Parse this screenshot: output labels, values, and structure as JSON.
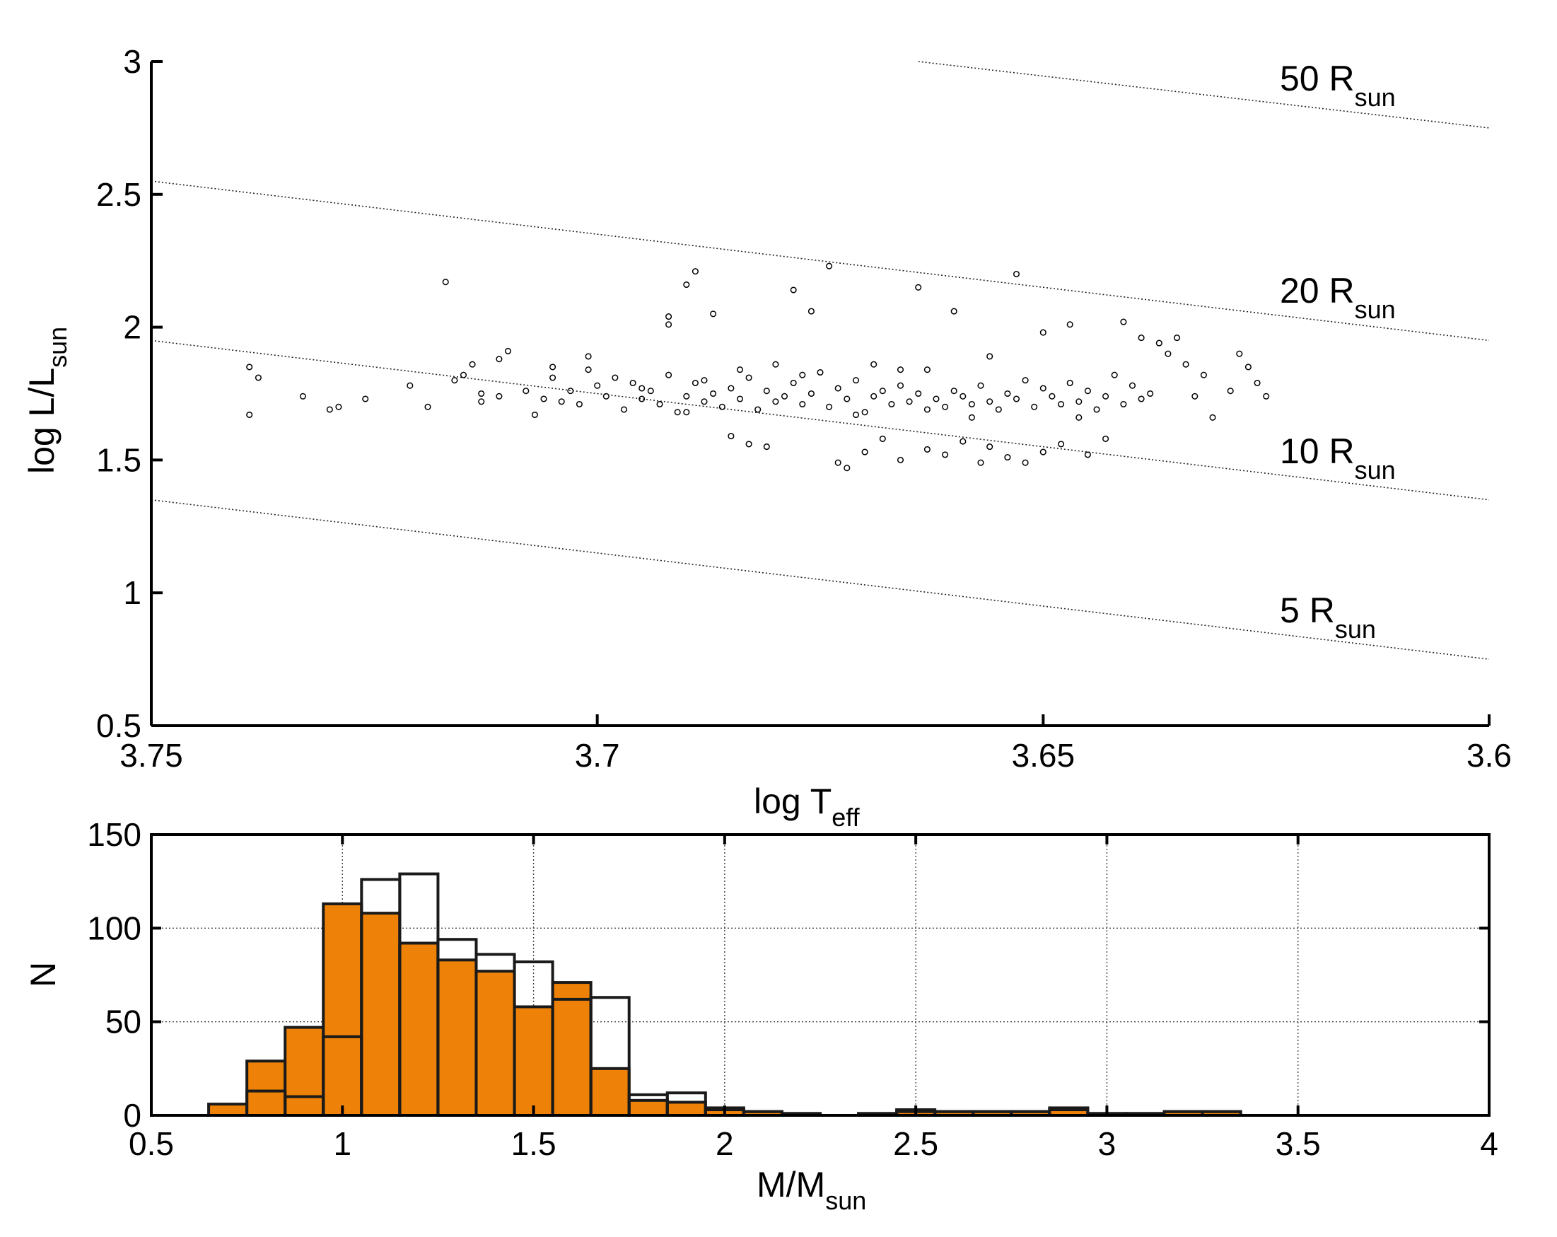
{
  "chart_data": [
    {
      "type": "scatter",
      "xlabel": "log T",
      "xlabel_sub": "eff",
      "ylabel": "log L/L",
      "ylabel_sub": "sun",
      "xlim": [
        3.75,
        3.6
      ],
      "x_reversed": true,
      "ylim": [
        0.5,
        3
      ],
      "xticks": [
        3.75,
        3.7,
        3.65,
        3.6
      ],
      "xtick_labels": [
        "3.75",
        "3.7",
        "3.65",
        "3.6"
      ],
      "yticks": [
        0.5,
        1,
        1.5,
        2,
        2.5,
        3
      ],
      "ytick_labels": [
        "0.5",
        "1",
        "1.5",
        "2",
        "2.5",
        "3"
      ],
      "grid": false,
      "radius_lines": [
        {
          "label_main": "5 R",
          "label_sub": "sun",
          "x": [
            3.75,
            3.6
          ],
          "y": [
            1.35,
            0.75
          ]
        },
        {
          "label_main": "10 R",
          "label_sub": "sun",
          "x": [
            3.75,
            3.6
          ],
          "y": [
            1.95,
            1.35
          ]
        },
        {
          "label_main": "20 R",
          "label_sub": "sun",
          "x": [
            3.75,
            3.6
          ],
          "y": [
            2.55,
            1.95
          ]
        },
        {
          "label_main": "50 R",
          "label_sub": "sun",
          "x": [
            3.664,
            3.6
          ],
          "y": [
            3.0,
            2.75
          ]
        }
      ],
      "points": [
        [
          3.739,
          1.85
        ],
        [
          3.739,
          1.67
        ],
        [
          3.738,
          1.81
        ],
        [
          3.733,
          1.74
        ],
        [
          3.73,
          1.69
        ],
        [
          3.721,
          1.78
        ],
        [
          3.717,
          2.17
        ],
        [
          3.716,
          1.8
        ],
        [
          3.715,
          1.82
        ],
        [
          3.714,
          1.86
        ],
        [
          3.713,
          1.75
        ],
        [
          3.713,
          1.72
        ],
        [
          3.711,
          1.88
        ],
        [
          3.71,
          1.91
        ],
        [
          3.708,
          1.76
        ],
        [
          3.707,
          1.67
        ],
        [
          3.706,
          1.73
        ],
        [
          3.705,
          1.85
        ],
        [
          3.704,
          1.72
        ],
        [
          3.703,
          1.76
        ],
        [
          3.702,
          1.71
        ],
        [
          3.701,
          1.84
        ],
        [
          3.7,
          1.78
        ],
        [
          3.699,
          1.74
        ],
        [
          3.698,
          1.81
        ],
        [
          3.697,
          1.69
        ],
        [
          3.696,
          1.79
        ],
        [
          3.695,
          1.73
        ],
        [
          3.694,
          1.76
        ],
        [
          3.693,
          1.71
        ],
        [
          3.692,
          1.82
        ],
        [
          3.691,
          1.68
        ],
        [
          3.69,
          1.74
        ],
        [
          3.689,
          1.79
        ],
        [
          3.688,
          1.72
        ],
        [
          3.687,
          1.75
        ],
        [
          3.686,
          1.7
        ],
        [
          3.685,
          1.77
        ],
        [
          3.684,
          1.73
        ],
        [
          3.683,
          1.81
        ],
        [
          3.682,
          1.69
        ],
        [
          3.681,
          1.76
        ],
        [
          3.68,
          1.72
        ],
        [
          3.679,
          1.74
        ],
        [
          3.678,
          1.79
        ],
        [
          3.677,
          1.71
        ],
        [
          3.676,
          1.75
        ],
        [
          3.675,
          1.83
        ],
        [
          3.674,
          1.7
        ],
        [
          3.673,
          1.77
        ],
        [
          3.672,
          1.73
        ],
        [
          3.671,
          1.8
        ],
        [
          3.67,
          1.68
        ],
        [
          3.669,
          1.74
        ],
        [
          3.668,
          1.76
        ],
        [
          3.667,
          1.71
        ],
        [
          3.666,
          1.78
        ],
        [
          3.665,
          1.72
        ],
        [
          3.664,
          1.75
        ],
        [
          3.663,
          1.69
        ],
        [
          3.662,
          1.73
        ],
        [
          3.661,
          1.7
        ],
        [
          3.66,
          1.76
        ],
        [
          3.659,
          1.74
        ],
        [
          3.658,
          1.71
        ],
        [
          3.657,
          1.78
        ],
        [
          3.656,
          1.72
        ],
        [
          3.655,
          1.69
        ],
        [
          3.654,
          1.75
        ],
        [
          3.653,
          1.73
        ],
        [
          3.652,
          1.8
        ],
        [
          3.651,
          1.7
        ],
        [
          3.65,
          1.77
        ],
        [
          3.649,
          1.74
        ],
        [
          3.648,
          1.71
        ],
        [
          3.647,
          1.79
        ],
        [
          3.646,
          1.72
        ],
        [
          3.645,
          1.76
        ],
        [
          3.644,
          1.69
        ],
        [
          3.643,
          1.74
        ],
        [
          3.642,
          1.82
        ],
        [
          3.641,
          1.71
        ],
        [
          3.64,
          1.78
        ],
        [
          3.639,
          1.73
        ],
        [
          3.638,
          1.75
        ],
        [
          3.692,
          2.04
        ],
        [
          3.692,
          2.01
        ],
        [
          3.69,
          2.16
        ],
        [
          3.689,
          2.21
        ],
        [
          3.687,
          2.05
        ],
        [
          3.685,
          1.59
        ],
        [
          3.683,
          1.56
        ],
        [
          3.681,
          1.55
        ],
        [
          3.678,
          2.14
        ],
        [
          3.676,
          2.06
        ],
        [
          3.674,
          2.23
        ],
        [
          3.673,
          1.49
        ],
        [
          3.672,
          1.47
        ],
        [
          3.67,
          1.53
        ],
        [
          3.668,
          1.58
        ],
        [
          3.666,
          1.5
        ],
        [
          3.664,
          2.15
        ],
        [
          3.663,
          1.54
        ],
        [
          3.661,
          1.52
        ],
        [
          3.66,
          2.06
        ],
        [
          3.659,
          1.57
        ],
        [
          3.657,
          1.49
        ],
        [
          3.656,
          1.55
        ],
        [
          3.654,
          1.51
        ],
        [
          3.653,
          2.2
        ],
        [
          3.652,
          1.49
        ],
        [
          3.65,
          1.53
        ],
        [
          3.648,
          1.56
        ],
        [
          3.647,
          2.01
        ],
        [
          3.645,
          1.52
        ],
        [
          3.643,
          1.58
        ],
        [
          3.641,
          2.02
        ],
        [
          3.639,
          1.96
        ],
        [
          3.637,
          1.94
        ],
        [
          3.636,
          1.9
        ],
        [
          3.635,
          1.96
        ],
        [
          3.634,
          1.86
        ],
        [
          3.633,
          1.74
        ],
        [
          3.632,
          1.82
        ],
        [
          3.631,
          1.66
        ],
        [
          3.629,
          1.76
        ],
        [
          3.628,
          1.9
        ],
        [
          3.627,
          1.85
        ],
        [
          3.626,
          1.79
        ],
        [
          3.625,
          1.74
        ],
        [
          3.65,
          1.98
        ],
        [
          3.656,
          1.89
        ],
        [
          3.663,
          1.84
        ],
        [
          3.669,
          1.86
        ],
        [
          3.677,
          1.82
        ],
        [
          3.684,
          1.84
        ],
        [
          3.688,
          1.8
        ],
        [
          3.695,
          1.77
        ],
        [
          3.701,
          1.89
        ],
        [
          3.705,
          1.81
        ],
        [
          3.711,
          1.74
        ],
        [
          3.719,
          1.7
        ],
        [
          3.726,
          1.73
        ],
        [
          3.729,
          1.7
        ],
        [
          3.69,
          1.68
        ],
        [
          3.68,
          1.86
        ],
        [
          3.671,
          1.67
        ],
        [
          3.666,
          1.84
        ],
        [
          3.658,
          1.66
        ],
        [
          3.646,
          1.66
        ]
      ]
    },
    {
      "type": "histogram",
      "xlabel": "M/M",
      "xlabel_sub": "sun",
      "ylabel": "N",
      "xlim": [
        0.5,
        4
      ],
      "ylim": [
        0,
        150
      ],
      "xticks": [
        0.5,
        1,
        1.5,
        2,
        2.5,
        3,
        3.5,
        4
      ],
      "xtick_labels": [
        "0.5",
        "1",
        "1.5",
        "2",
        "2.5",
        "3",
        "3.5",
        "4"
      ],
      "yticks": [
        0,
        50,
        100,
        150
      ],
      "ytick_labels": [
        "0",
        "50",
        "100",
        "150"
      ],
      "grid": true,
      "bin_edges": [
        0.65,
        0.75,
        0.85,
        0.95,
        1.05,
        1.15,
        1.25,
        1.35,
        1.45,
        1.55,
        1.65,
        1.75,
        1.85,
        1.95,
        2.05,
        2.15,
        2.25,
        2.35,
        2.45,
        2.55,
        2.65,
        2.75,
        2.85,
        2.95,
        3.05,
        3.15,
        3.25,
        3.35
      ],
      "series": [
        {
          "fill": "#ee8208",
          "values": [
            6,
            29,
            47,
            113,
            108,
            92,
            83,
            77,
            58,
            71,
            25,
            8,
            7,
            3,
            2,
            1,
            0,
            1,
            3,
            2,
            2,
            2,
            4,
            1,
            1,
            2,
            2
          ]
        },
        {
          "fill": "none",
          "values": [
            0,
            13,
            10,
            42,
            126,
            129,
            94,
            86,
            82,
            62,
            63,
            11,
            12,
            4,
            2,
            1,
            0,
            1,
            2,
            2,
            2,
            2,
            3,
            1,
            1,
            2,
            2
          ]
        }
      ]
    }
  ]
}
